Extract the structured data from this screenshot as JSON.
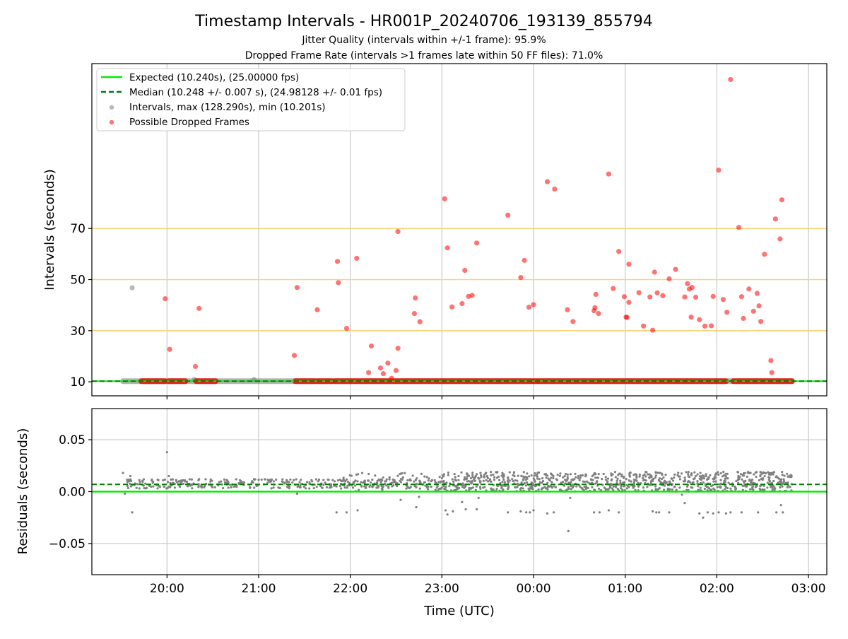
{
  "figure": {
    "title": "Timestamp Intervals - HR001P_20240706_193139_855794",
    "subtitle_1": "Jitter Quality (intervals within +/-1 frame): 95.9%",
    "subtitle_2": "Dropped Frame Rate (intervals >1 frames late within 50 FF files): 71.0%",
    "xlabel": "Time (UTC)"
  },
  "colors": {
    "expected": "#00ee00",
    "median": "#007f00",
    "intervals": "#808080",
    "dropped": "#ff0000",
    "threshold": "#ffd27a",
    "grid": "#c8c8c8"
  },
  "chart_data": [
    {
      "type": "scatter",
      "name": "intervals",
      "ylabel": "Intervals (seconds)",
      "x_axis": {
        "unit": "hours since 19:00 UTC",
        "lim": [
          0.18,
          8.2
        ],
        "ticks": [
          1,
          2,
          3,
          4,
          5,
          6,
          7,
          8
        ],
        "tick_labels": [
          "20:00",
          "21:00",
          "22:00",
          "23:00",
          "00:00",
          "01:00",
          "02:00",
          "03:00"
        ]
      },
      "ylim": [
        4.5,
        134.5
      ],
      "yticks": [
        10,
        30,
        50,
        70
      ],
      "grid": "x",
      "legend_position": "upper-left",
      "legend": [
        {
          "label": "Expected (10.240s), (25.00000 fps)",
          "style": "line"
        },
        {
          "label": "Median (10.248 +/- 0.007 s), (24.98128 +/- 0.01 fps)",
          "style": "dashed"
        },
        {
          "label": "Intervals, max (128.290s), min (10.201s)",
          "style": "gray-dot"
        },
        {
          "label": "Possible Dropped Frames",
          "style": "red-dot"
        }
      ],
      "expected_value": 10.24,
      "median_value": 10.248,
      "threshold_lines": [
        30,
        50,
        70
      ],
      "normal_band_segments": [
        [
          0.52,
          7.82
        ]
      ],
      "normal_points": [
        [
          0.62,
          46.8
        ],
        [
          1.3,
          10.9
        ],
        [
          1.95,
          10.9
        ]
      ],
      "dropped_band_segments": [
        [
          0.72,
          0.98
        ],
        [
          1.02,
          1.2
        ],
        [
          1.32,
          1.53
        ],
        [
          2.4,
          2.62
        ],
        [
          2.65,
          2.8
        ],
        [
          2.83,
          4.98
        ],
        [
          5.0,
          5.04
        ],
        [
          5.06,
          7.1
        ],
        [
          7.18,
          7.82
        ]
      ],
      "dropped_points": [
        [
          0.98,
          42.5
        ],
        [
          1.03,
          22.7
        ],
        [
          1.31,
          16.0
        ],
        [
          1.35,
          38.7
        ],
        [
          2.39,
          20.3
        ],
        [
          2.42,
          46.9
        ],
        [
          2.64,
          38.2
        ],
        [
          2.86,
          57.1
        ],
        [
          2.87,
          48.8
        ],
        [
          2.96,
          30.9
        ],
        [
          3.07,
          58.3
        ],
        [
          3.2,
          13.6
        ],
        [
          3.23,
          24.0
        ],
        [
          3.33,
          15.4
        ],
        [
          3.36,
          13.2
        ],
        [
          3.41,
          17.3
        ],
        [
          3.45,
          11.4
        ],
        [
          3.5,
          14.4
        ],
        [
          3.52,
          23.1
        ],
        [
          3.52,
          68.8
        ],
        [
          3.7,
          36.7
        ],
        [
          3.71,
          42.8
        ],
        [
          3.76,
          33.5
        ],
        [
          4.03,
          81.6
        ],
        [
          4.06,
          62.4
        ],
        [
          4.11,
          39.3
        ],
        [
          4.22,
          40.6
        ],
        [
          4.25,
          53.6
        ],
        [
          4.29,
          43.4
        ],
        [
          4.33,
          43.8
        ],
        [
          4.38,
          64.3
        ],
        [
          4.72,
          75.2
        ],
        [
          4.86,
          50.8
        ],
        [
          4.9,
          57.5
        ],
        [
          4.95,
          39.2
        ],
        [
          5.0,
          40.2
        ],
        [
          5.15,
          88.3
        ],
        [
          5.23,
          85.4
        ],
        [
          5.37,
          38.2
        ],
        [
          5.43,
          33.6
        ],
        [
          5.66,
          37.8
        ],
        [
          5.67,
          39.0
        ],
        [
          5.68,
          44.2
        ],
        [
          5.71,
          36.7
        ],
        [
          5.82,
          91.3
        ],
        [
          5.87,
          46.5
        ],
        [
          5.93,
          61.0
        ],
        [
          5.99,
          43.3
        ],
        [
          6.01,
          35.3
        ],
        [
          6.02,
          35.2
        ],
        [
          6.04,
          41.1
        ],
        [
          6.04,
          56.0
        ],
        [
          6.15,
          44.9
        ],
        [
          6.2,
          31.8
        ],
        [
          6.27,
          43.2
        ],
        [
          6.3,
          30.2
        ],
        [
          6.32,
          52.9
        ],
        [
          6.35,
          44.8
        ],
        [
          6.41,
          43.7
        ],
        [
          6.48,
          50.3
        ],
        [
          6.55,
          54.0
        ],
        [
          6.65,
          43.2
        ],
        [
          6.68,
          48.4
        ],
        [
          6.7,
          46.3
        ],
        [
          6.72,
          35.3
        ],
        [
          6.73,
          46.9
        ],
        [
          6.77,
          43.1
        ],
        [
          6.81,
          34.3
        ],
        [
          6.87,
          31.8
        ],
        [
          6.94,
          31.9
        ],
        [
          6.96,
          43.4
        ],
        [
          7.02,
          92.8
        ],
        [
          7.07,
          42.2
        ],
        [
          7.11,
          37.2
        ],
        [
          7.15,
          128.3
        ],
        [
          7.24,
          70.4
        ],
        [
          7.27,
          43.3
        ],
        [
          7.29,
          34.8
        ],
        [
          7.35,
          46.3
        ],
        [
          7.4,
          37.6
        ],
        [
          7.44,
          44.6
        ],
        [
          7.46,
          39.7
        ],
        [
          7.48,
          33.6
        ],
        [
          7.52,
          59.9
        ],
        [
          7.59,
          18.3
        ],
        [
          7.6,
          13.6
        ],
        [
          7.64,
          73.7
        ],
        [
          7.69,
          65.9
        ],
        [
          7.71,
          81.2
        ]
      ]
    },
    {
      "type": "scatter",
      "name": "residuals",
      "ylabel": "Residuals (seconds)",
      "xlabel": "Time (UTC)",
      "x_axis": {
        "unit": "hours since 19:00 UTC",
        "lim": [
          0.18,
          8.2
        ],
        "ticks": [
          1,
          2,
          3,
          4,
          5,
          6,
          7,
          8
        ],
        "tick_labels": [
          "20:00",
          "21:00",
          "22:00",
          "23:00",
          "00:00",
          "01:00",
          "02:00",
          "03:00"
        ]
      },
      "ylim": [
        -0.08,
        0.08
      ],
      "yticks": [
        -0.05,
        0.0,
        0.05
      ],
      "ytick_labels": [
        "−0.05",
        "0.00",
        "0.05"
      ],
      "grid": "both",
      "expected_value": 0.0,
      "median_value": 0.007,
      "residual_groups": [
        {
          "x_start": 0.52,
          "x_end": 3.9,
          "y_min": 0.003,
          "y_max": 0.012,
          "count": 340
        },
        {
          "x_start": 2.9,
          "x_end": 3.9,
          "y_min": 0.0,
          "y_max": 0.018,
          "count": 70
        },
        {
          "x_start": 3.9,
          "x_end": 7.82,
          "y_min": 0.0,
          "y_max": 0.019,
          "count": 900
        }
      ],
      "outliers": [
        [
          0.52,
          0.018
        ],
        [
          0.54,
          -0.002
        ],
        [
          0.6,
          0.015
        ],
        [
          0.62,
          -0.02
        ],
        [
          1.0,
          0.038
        ],
        [
          1.02,
          0.015
        ],
        [
          1.05,
          0.006
        ],
        [
          1.35,
          0.012
        ],
        [
          1.38,
          0.004
        ],
        [
          1.95,
          0.012
        ],
        [
          2.42,
          -0.002
        ],
        [
          2.65,
          0.01
        ],
        [
          2.85,
          -0.02
        ],
        [
          2.9,
          0.003
        ],
        [
          2.96,
          -0.02
        ],
        [
          3.08,
          -0.018
        ],
        [
          3.2,
          0.017
        ],
        [
          3.38,
          0.01
        ],
        [
          3.55,
          -0.008
        ],
        [
          3.72,
          -0.015
        ],
        [
          3.75,
          -0.005
        ],
        [
          4.04,
          -0.018
        ],
        [
          4.06,
          -0.022
        ],
        [
          4.12,
          -0.019
        ],
        [
          4.22,
          -0.01
        ],
        [
          4.26,
          -0.017
        ],
        [
          4.38,
          -0.017
        ],
        [
          4.4,
          -0.006
        ],
        [
          4.72,
          -0.02
        ],
        [
          4.86,
          -0.019
        ],
        [
          4.92,
          -0.02
        ],
        [
          4.96,
          -0.02
        ],
        [
          5.0,
          -0.018
        ],
        [
          5.15,
          -0.021
        ],
        [
          5.22,
          -0.02
        ],
        [
          5.38,
          -0.038
        ],
        [
          5.4,
          -0.006
        ],
        [
          5.66,
          -0.02
        ],
        [
          5.72,
          -0.02
        ],
        [
          5.82,
          -0.018
        ],
        [
          5.93,
          -0.02
        ],
        [
          6.3,
          -0.019
        ],
        [
          6.34,
          -0.02
        ],
        [
          6.37,
          -0.02
        ],
        [
          6.48,
          -0.02
        ],
        [
          6.62,
          -0.003
        ],
        [
          6.65,
          -0.011
        ],
        [
          6.81,
          -0.021
        ],
        [
          6.85,
          -0.025
        ],
        [
          6.9,
          -0.02
        ],
        [
          6.96,
          -0.021
        ],
        [
          7.02,
          -0.02
        ],
        [
          7.1,
          -0.021
        ],
        [
          7.15,
          -0.02
        ],
        [
          7.27,
          -0.02
        ],
        [
          7.45,
          -0.02
        ],
        [
          7.65,
          -0.02
        ],
        [
          7.7,
          -0.013
        ],
        [
          7.72,
          -0.02
        ]
      ]
    }
  ]
}
